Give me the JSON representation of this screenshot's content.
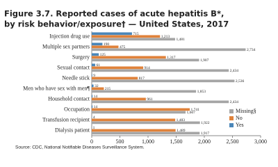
{
  "chart_data": {
    "type": "hbar",
    "title": [
      "Figure 3.7. Reported cases of acute hepatitis B*,",
      "by risk behavior/exposure† — United States, 2017"
    ],
    "source": "Source: CDC, National Notifiable Diseases Surveillance System.",
    "categories": [
      "Injection drug use",
      "Multiple sex partners",
      "Surgery",
      "Sexual contact",
      "Needle stick",
      "Men who have sex with men¶",
      "Household contact",
      "Occupation",
      "Transfusion recipient",
      "Dialysis patient"
    ],
    "series": [
      {
        "name": "Yes",
        "color": "#4a86b8",
        "values": [
          715,
          190,
          125,
          61,
          9,
          32,
          14,
          14,
          4,
          1
        ],
        "value_labels": [
          "715",
          "190",
          "125",
          "61",
          "9",
          "32",
          "14",
          "14",
          "4",
          "1"
        ]
      },
      {
        "name": "No",
        "color": "#e0823a",
        "values": [
          1213,
          475,
          1317,
          914,
          817,
          215,
          961,
          1741,
          1483,
          1489
        ],
        "value_labels": [
          "1,213",
          "475",
          "1,317",
          "914",
          "817",
          "215",
          "961",
          "1,741",
          "1,483",
          "1,489"
        ]
      },
      {
        "name": "Missing§",
        "color": "#a5a5a5",
        "values": [
          1481,
          2734,
          1907,
          2434,
          2536,
          1853,
          2434,
          1667,
          1922,
          1917
        ],
        "value_labels": [
          "1,481",
          "2,734",
          "1,907",
          "2,434",
          "2,536",
          "1,853",
          "2,434",
          "1,667",
          "1,922",
          "1,917"
        ]
      }
    ],
    "xlim": [
      0,
      3000
    ],
    "xticks": [
      0,
      500,
      {
        "value": 1000,
        "label": "1,000"
      },
      {
        "value": 1500,
        "label": "1,500"
      },
      {
        "value": 2000,
        "label": "2,000"
      },
      {
        "value": 2500,
        "label": "2,500"
      },
      {
        "value": 3000,
        "label": "3,000"
      }
    ],
    "legend": "lower-right"
  }
}
